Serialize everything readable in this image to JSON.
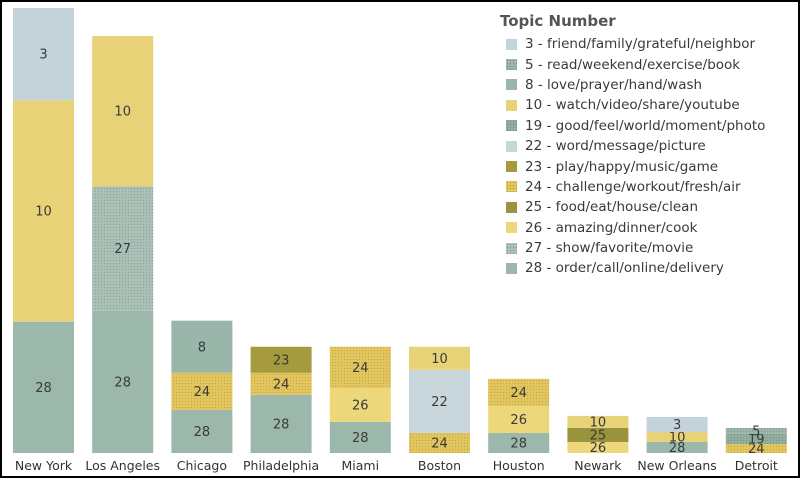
{
  "chart_data": {
    "type": "bar",
    "stacked": true,
    "legend": {
      "title": "Topic Number",
      "placement": "top-right",
      "items": [
        {
          "topic": "3",
          "label": "3 - friend/family/grateful/neighbor",
          "color": "#c4d3d9",
          "pattern": false
        },
        {
          "topic": "5",
          "label": "5 - read/weekend/exercise/book",
          "color": "#9db5a8",
          "pattern": true
        },
        {
          "topic": "8",
          "label": "8 - love/prayer/hand/wash",
          "color": "#9ab5a9",
          "pattern": false
        },
        {
          "topic": "10",
          "label": "10 - watch/video/share/youtube",
          "color": "#e8d278",
          "pattern": false
        },
        {
          "topic": "19",
          "label": "19 - good/feel/world/moment/photo",
          "color": "#8fae9f",
          "pattern": true
        },
        {
          "topic": "22",
          "label": "22 - word/message/picture",
          "color": "#c8d6dc",
          "pattern": false
        },
        {
          "topic": "23",
          "label": "23 - play/happy/music/game",
          "color": "#a69a3e",
          "pattern": false
        },
        {
          "topic": "24",
          "label": "24 - challenge/workout/fresh/air",
          "color": "#e2c55c",
          "pattern": true
        },
        {
          "topic": "25",
          "label": "25 - food/eat/house/clean",
          "color": "#9a933e",
          "pattern": false
        },
        {
          "topic": "26",
          "label": "26 - amazing/dinner/cook",
          "color": "#ecd77b",
          "pattern": false
        },
        {
          "topic": "27",
          "label": "27 - show/favorite/movie",
          "color": "#a9c0b6",
          "pattern": true
        },
        {
          "topic": "28",
          "label": "28 - order/call/online/delivery",
          "color": "#9bb8ab",
          "pattern": false
        }
      ]
    },
    "categories": [
      "New York",
      "Los Angeles",
      "Chicago",
      "Philadelphia",
      "Miami",
      "Boston",
      "Houston",
      "Newark",
      "New Orleans",
      "Detroit"
    ],
    "ylim": [
      0,
      442
    ],
    "bars": [
      {
        "city": "New York",
        "segments": [
          {
            "topic": "28",
            "value": 131
          },
          {
            "topic": "10",
            "value": 221
          },
          {
            "topic": "3",
            "value": 92
          }
        ]
      },
      {
        "city": "Los Angeles",
        "segments": [
          {
            "topic": "28",
            "value": 142
          },
          {
            "topic": "27",
            "value": 124
          },
          {
            "topic": "10",
            "value": 150
          }
        ]
      },
      {
        "city": "Chicago",
        "segments": [
          {
            "topic": "28",
            "value": 43
          },
          {
            "topic": "24",
            "value": 37
          },
          {
            "topic": "8",
            "value": 52
          }
        ]
      },
      {
        "city": "Philadelphia",
        "segments": [
          {
            "topic": "28",
            "value": 58
          },
          {
            "topic": "24",
            "value": 22
          },
          {
            "topic": "23",
            "value": 26
          }
        ]
      },
      {
        "city": "Miami",
        "segments": [
          {
            "topic": "28",
            "value": 31
          },
          {
            "topic": "26",
            "value": 34
          },
          {
            "topic": "24",
            "value": 41
          }
        ]
      },
      {
        "city": "Boston",
        "segments": [
          {
            "topic": "24",
            "value": 20
          },
          {
            "topic": "22",
            "value": 63
          },
          {
            "topic": "10",
            "value": 23
          }
        ]
      },
      {
        "city": "Houston",
        "segments": [
          {
            "topic": "28",
            "value": 20
          },
          {
            "topic": "26",
            "value": 27
          },
          {
            "topic": "24",
            "value": 27
          }
        ]
      },
      {
        "city": "Newark",
        "segments": [
          {
            "topic": "26",
            "value": 11
          },
          {
            "topic": "25",
            "value": 14
          },
          {
            "topic": "10",
            "value": 12
          }
        ]
      },
      {
        "city": "New Orleans",
        "segments": [
          {
            "topic": "28",
            "value": 11
          },
          {
            "topic": "10",
            "value": 10
          },
          {
            "topic": "3",
            "value": 15
          }
        ]
      },
      {
        "city": "Detroit",
        "segments": [
          {
            "topic": "24",
            "value": 9
          },
          {
            "topic": "19",
            "value": 10
          },
          {
            "topic": "5",
            "value": 6
          }
        ]
      }
    ]
  }
}
